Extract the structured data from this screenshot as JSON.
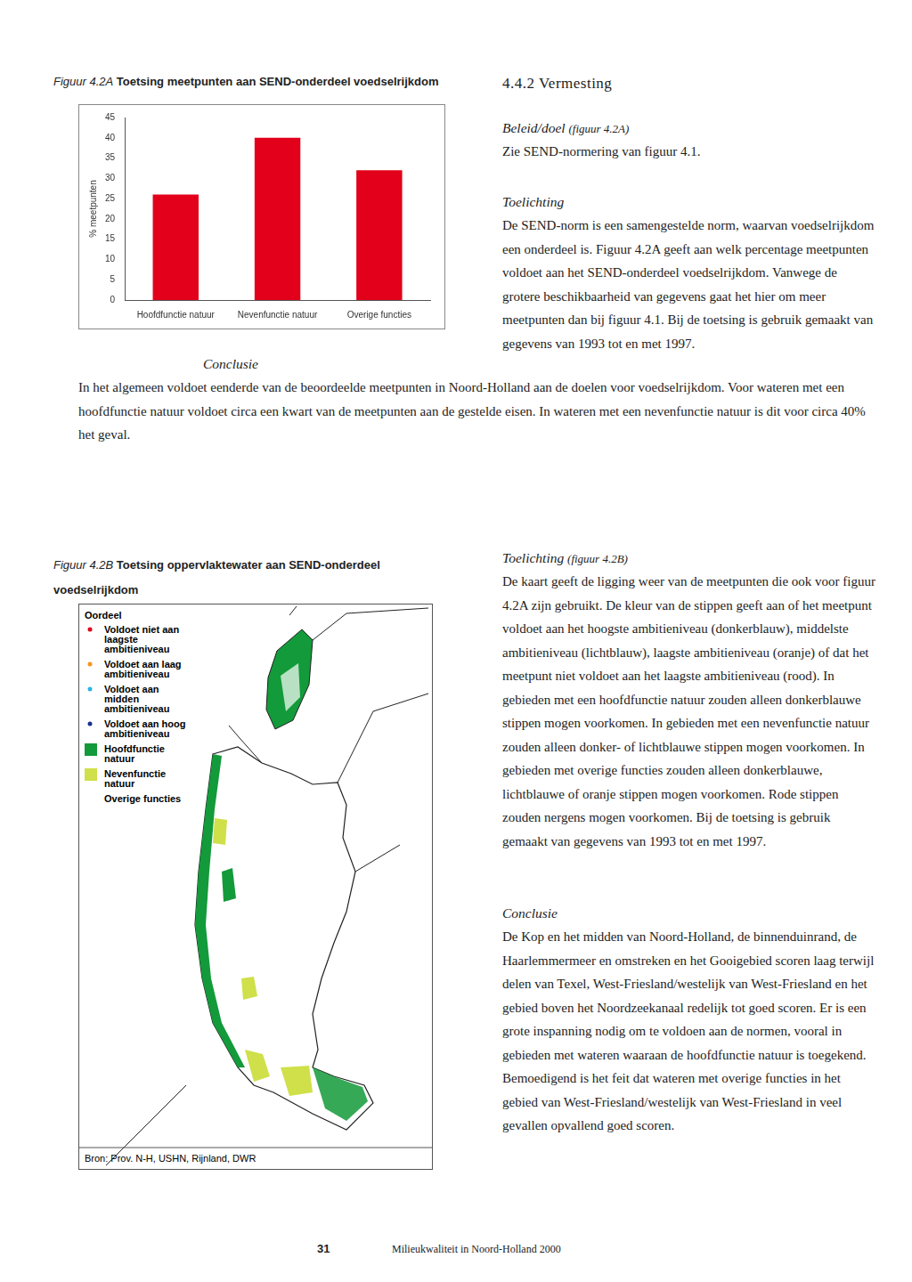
{
  "chart_data": {
    "type": "bar",
    "y_label": "% meetpunten",
    "categories": [
      "Hoofdfunctie natuur",
      "Nevenfunctie natuur",
      "Overige functies"
    ],
    "values": [
      26,
      40,
      32
    ],
    "color": "#e2001a",
    "ylim": [
      0,
      45
    ],
    "yticks": [
      0,
      5,
      10,
      15,
      20,
      25,
      30,
      35,
      40,
      45
    ],
    "grid": false
  },
  "page": {
    "fig_a": {
      "label": "Figuur 4.2A",
      "title": "Toetsing meetpunten aan SEND-onderdeel voedselrijkdom"
    },
    "section": "4.4.2 Vermesting",
    "beleid": {
      "heading": "Beleid/doel",
      "ref": "(figuur 4.2A)",
      "text": "Zie SEND-normering van figuur 4.1."
    },
    "toelichting_a": {
      "heading": "Toelichting",
      "text": "De SEND-norm is een samengestelde norm, waarvan voedselrijkdom een onderdeel is. Figuur 4.2A geeft aan welk percentage meetpunten voldoet aan het SEND-onderdeel voedselrijkdom. Vanwege de grotere beschikbaarheid van gegevens gaat het hier om meer meetpunten dan bij figuur 4.1. Bij de toetsing is gebruik gemaakt van gegevens van 1993 tot en met 1997."
    },
    "conclusie_a": {
      "heading": "Conclusie",
      "text": "In het algemeen voldoet eenderde van de beoordeelde meetpunten in Noord-Holland aan de doelen voor voedselrijkdom. Voor wateren met een hoofdfunctie natuur voldoet circa een kwart van de meetpunten aan de gestelde eisen. In wateren met een nevenfunctie natuur is dit voor circa 40% het geval."
    },
    "fig_b": {
      "label": "Figuur 4.2B",
      "title": "Toetsing oppervlaktewater aan SEND-onderdeel voedselrijkdom"
    },
    "map": {
      "legend_title": "Oordeel",
      "legend": [
        {
          "label": "Voldoet niet aan laagste ambitieniveau",
          "color": "#e2001a",
          "marker": "dot"
        },
        {
          "label": "Voldoet aan laag ambitieniveau",
          "color": "#f7941d",
          "marker": "dot"
        },
        {
          "label": "Voldoet aan midden ambitieniveau",
          "color": "#29b6e8",
          "marker": "dot"
        },
        {
          "label": "Voldoet aan hoog ambitieniveau",
          "color": "#1b2f8f",
          "marker": "dot"
        },
        {
          "label": "Hoofdfunctie natuur",
          "color": "#139a3a",
          "marker": "square"
        },
        {
          "label": "Nevenfunctie natuur",
          "color": "#cfe04a",
          "marker": "square"
        },
        {
          "label": "Overige functies",
          "color": "#ffffff",
          "marker": "none"
        }
      ],
      "source": "Bron: Prov. N-H, USHN, Rijnland, DWR"
    },
    "toelichting_b": {
      "heading": "Toelichting",
      "ref": "(figuur 4.2B)",
      "text": "De kaart geeft de ligging weer van de meetpunten die ook voor figuur 4.2A zijn gebruikt. De kleur van de stippen geeft aan of het meetpunt voldoet aan het hoogste ambitieniveau (donkerblauw), middelste ambitieniveau (lichtblauw), laagste ambitieniveau (oranje) of dat het meetpunt niet voldoet aan het laagste ambitieniveau (rood). In gebieden met een hoofdfunctie natuur zouden alleen donkerblauwe stippen mogen voorkomen. In gebieden met een nevenfunctie natuur zouden alleen donker- of lichtblauwe stippen mogen voorkomen. In gebieden met overige functies zouden alleen donkerblauwe, lichtblauwe of oranje stippen mogen voorkomen. Rode stippen zouden nergens mogen voorkomen. Bij de toetsing is gebruik gemaakt van gegevens van 1993 tot en met 1997."
    },
    "conclusie_b": {
      "heading": "Conclusie",
      "text": "De Kop en het midden van Noord-Holland, de binnenduinrand, de Haarlemmermeer en omstreken en het Gooigebied scoren laag terwijl delen van Texel, West-Friesland/westelijk van West-Friesland en het gebied boven het Noordzeekanaal redelijk tot goed scoren. Er is een grote inspanning nodig om te voldoen aan de normen, vooral in gebieden met wateren waaraan de hoofdfunctie natuur is toegekend. Bemoedigend is het feit dat wateren met overige functies in het gebied van West-Friesland/westelijk van West-Friesland in veel gevallen opvallend goed scoren."
    },
    "footer": {
      "page": "31",
      "text": "Milieukwaliteit in Noord-Holland 2000"
    }
  }
}
